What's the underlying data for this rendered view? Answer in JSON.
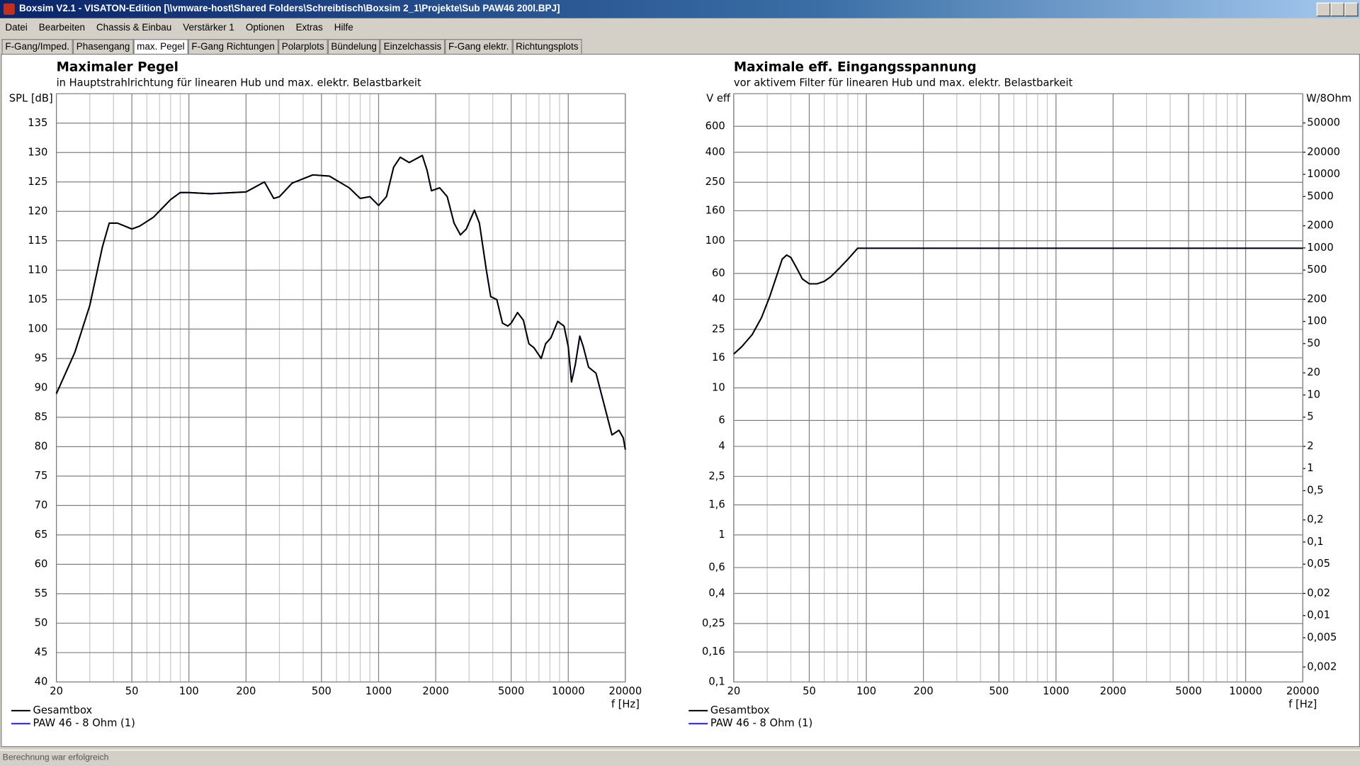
{
  "window": {
    "title": "Boxsim V2.1 - VISATON-Edition [\\\\vmware-host\\Shared Folders\\Schreibtisch\\Boxsim 2_1\\Projekte\\Sub PAW46 200l.BPJ]"
  },
  "menu": [
    "Datei",
    "Bearbeiten",
    "Chassis & Einbau",
    "Verstärker 1",
    "Optionen",
    "Extras",
    "Hilfe"
  ],
  "tabs": [
    "F-Gang/Imped.",
    "Phasengang",
    "max. Pegel",
    "F-Gang Richtungen",
    "Polarplots",
    "Bündelung",
    "Einzelchassis",
    "F-Gang elektr.",
    "Richtungsplots"
  ],
  "active_tab": 2,
  "status": "Berechnung war erfolgreich",
  "chart_data": [
    {
      "type": "line",
      "title": "Maximaler Pegel",
      "subtitle": "in Hauptstrahlrichtung für linearen Hub und max. elektr. Belastbarkeit",
      "ylabel": "SPL [dB]",
      "xlabel": "f [Hz]",
      "xlog": true,
      "grid": true,
      "xlim": [
        20,
        20000
      ],
      "xticks": [
        20,
        50,
        100,
        200,
        500,
        1000,
        2000,
        5000,
        10000,
        20000
      ],
      "xminor": [
        30,
        40,
        60,
        70,
        80,
        90,
        300,
        400,
        600,
        700,
        800,
        900,
        3000,
        4000,
        6000,
        7000,
        8000,
        9000
      ],
      "ylim": [
        40,
        140
      ],
      "yticks": [
        40,
        45,
        50,
        55,
        60,
        65,
        70,
        75,
        80,
        85,
        90,
        95,
        100,
        105,
        110,
        115,
        120,
        125,
        130,
        135
      ],
      "x": [
        20,
        25,
        30,
        35,
        38,
        42,
        50,
        55,
        65,
        80,
        90,
        100,
        130,
        200,
        250,
        280,
        300,
        350,
        450,
        550,
        700,
        800,
        900,
        1000,
        1100,
        1200,
        1300,
        1450,
        1700,
        1800,
        1900,
        2100,
        2300,
        2500,
        2700,
        2900,
        3200,
        3400,
        3700,
        3900,
        4200,
        4500,
        4800,
        5000,
        5400,
        5800,
        6200,
        6600,
        7200,
        7600,
        8100,
        8800,
        9500,
        10000,
        10400,
        10900,
        11500,
        12000,
        12800,
        14000,
        15500,
        17000,
        18500,
        19500,
        20000
      ],
      "series": [
        {
          "name": "PAW 46 - 8 Ohm (1)",
          "color": "#2020d0",
          "values": [
            89,
            96,
            104,
            114,
            118,
            118,
            117,
            117.5,
            119,
            122,
            123.2,
            123.2,
            123,
            123.3,
            125,
            122.2,
            122.5,
            124.8,
            126.2,
            126,
            124,
            122.2,
            122.5,
            121,
            122.5,
            127.5,
            129.2,
            128.3,
            129.5,
            127,
            123.5,
            124,
            122.5,
            118,
            116,
            117,
            120.2,
            118,
            110,
            105.5,
            105,
            101,
            100.5,
            101,
            102.8,
            101.5,
            97.5,
            96.8,
            95,
            97.5,
            98.5,
            101.3,
            100.5,
            97,
            91,
            94,
            98.8,
            97,
            93.5,
            92.5,
            87,
            82,
            82.8,
            81.5,
            79.5
          ]
        },
        {
          "name": "Gesamtbox",
          "color": "#000000",
          "values": [
            89,
            96,
            104,
            114,
            118,
            118,
            117,
            117.5,
            119,
            122,
            123.2,
            123.2,
            123,
            123.3,
            125,
            122.2,
            122.5,
            124.8,
            126.2,
            126,
            124,
            122.2,
            122.5,
            121,
            122.5,
            127.5,
            129.2,
            128.3,
            129.5,
            127,
            123.5,
            124,
            122.5,
            118,
            116,
            117,
            120.2,
            118,
            110,
            105.5,
            105,
            101,
            100.5,
            101,
            102.8,
            101.5,
            97.5,
            96.8,
            95,
            97.5,
            98.5,
            101.3,
            100.5,
            97,
            91,
            94,
            98.8,
            97,
            93.5,
            92.5,
            87,
            82,
            82.8,
            81.5,
            79.5
          ]
        }
      ]
    },
    {
      "type": "line",
      "title": "Maximale eff. Eingangsspannung",
      "subtitle": "vor aktivem Filter für linearen Hub und max. elektr. Belastbarkeit",
      "ylabel": "V eff",
      "y2label": "W/8Ohm",
      "xlabel": "f [Hz]",
      "xlog": true,
      "ylog": true,
      "y2log": true,
      "grid": true,
      "xlim": [
        20,
        20000
      ],
      "xticks": [
        20,
        50,
        100,
        200,
        500,
        1000,
        2000,
        5000,
        10000,
        20000
      ],
      "xminor": [
        30,
        40,
        60,
        70,
        80,
        90,
        300,
        400,
        600,
        700,
        800,
        900,
        3000,
        4000,
        6000,
        7000,
        8000,
        9000
      ],
      "ylim": [
        0.1,
        1000
      ],
      "yticks": [
        {
          "value": 0.1,
          "label": "0,1"
        },
        {
          "value": 0.16,
          "label": "0,16"
        },
        {
          "value": 0.25,
          "label": "0,25"
        },
        {
          "value": 0.4,
          "label": "0,4"
        },
        {
          "value": 0.6,
          "label": "0,6"
        },
        1,
        {
          "value": 1.6,
          "label": "1,6"
        },
        {
          "value": 2.5,
          "label": "2,5"
        },
        4,
        6,
        10,
        16,
        25,
        40,
        60,
        100,
        160,
        250,
        400,
        600
      ],
      "y2lim": [
        0.00125,
        125000
      ],
      "y2ticks": [
        {
          "value": 0.002,
          "label": "0,002"
        },
        {
          "value": 0.005,
          "label": "0,005"
        },
        {
          "value": 0.01,
          "label": "0,01"
        },
        {
          "value": 0.02,
          "label": "0,02"
        },
        {
          "value": 0.05,
          "label": "0,05"
        },
        {
          "value": 0.1,
          "label": "0,1"
        },
        {
          "value": 0.2,
          "label": "0,2"
        },
        {
          "value": 0.5,
          "label": "0,5"
        },
        1,
        2,
        5,
        10,
        20,
        50,
        100,
        200,
        500,
        1000,
        2000,
        5000,
        10000,
        20000,
        50000
      ],
      "x": [
        20,
        22,
        25,
        28,
        31,
        34,
        36,
        38,
        40,
        43,
        46,
        50,
        55,
        60,
        65,
        72,
        80,
        90,
        200,
        1000,
        20000
      ],
      "series": [
        {
          "name": "PAW 46 - 8 Ohm (1)",
          "color": "#2020d0",
          "values": [
            17,
            19,
            23,
            30,
            42,
            60,
            75,
            80,
            77,
            65,
            55,
            51,
            51,
            53,
            57,
            65,
            75,
            89,
            89,
            89,
            89
          ]
        },
        {
          "name": "Gesamtbox",
          "color": "#000000",
          "values": [
            17,
            19,
            23,
            30,
            42,
            60,
            75,
            80,
            77,
            65,
            55,
            51,
            51,
            53,
            57,
            65,
            75,
            89,
            89,
            89,
            89
          ]
        }
      ]
    }
  ]
}
